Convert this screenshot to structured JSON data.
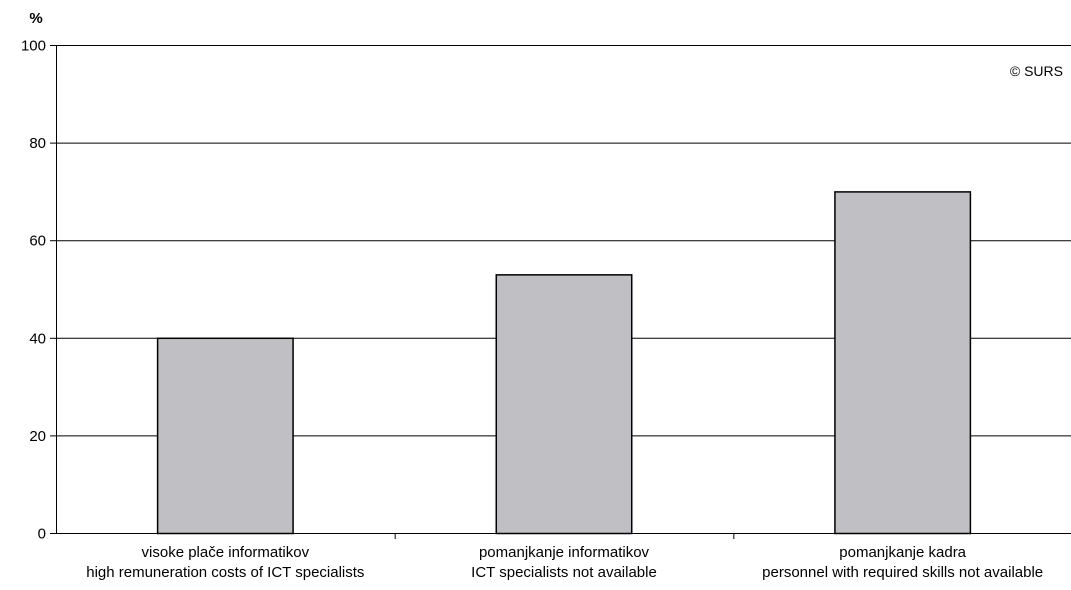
{
  "chart_data": {
    "type": "bar",
    "unit_label": "%",
    "watermark": "© SURS",
    "categories": [
      [
        "visoke plače informatikov",
        "high remuneration costs of ICT specialists"
      ],
      [
        "pomanjkanje informatikov",
        "ICT specialists not available"
      ],
      [
        "pomanjkanje kadra",
        "personnel with required skills not available"
      ]
    ],
    "values": [
      40,
      53,
      70
    ],
    "ylim": [
      0,
      100
    ],
    "yticks": [
      0,
      20,
      40,
      60,
      80,
      100
    ],
    "grid": true,
    "bar_color": "#c0c0c4",
    "bar_stroke": "#000000"
  }
}
